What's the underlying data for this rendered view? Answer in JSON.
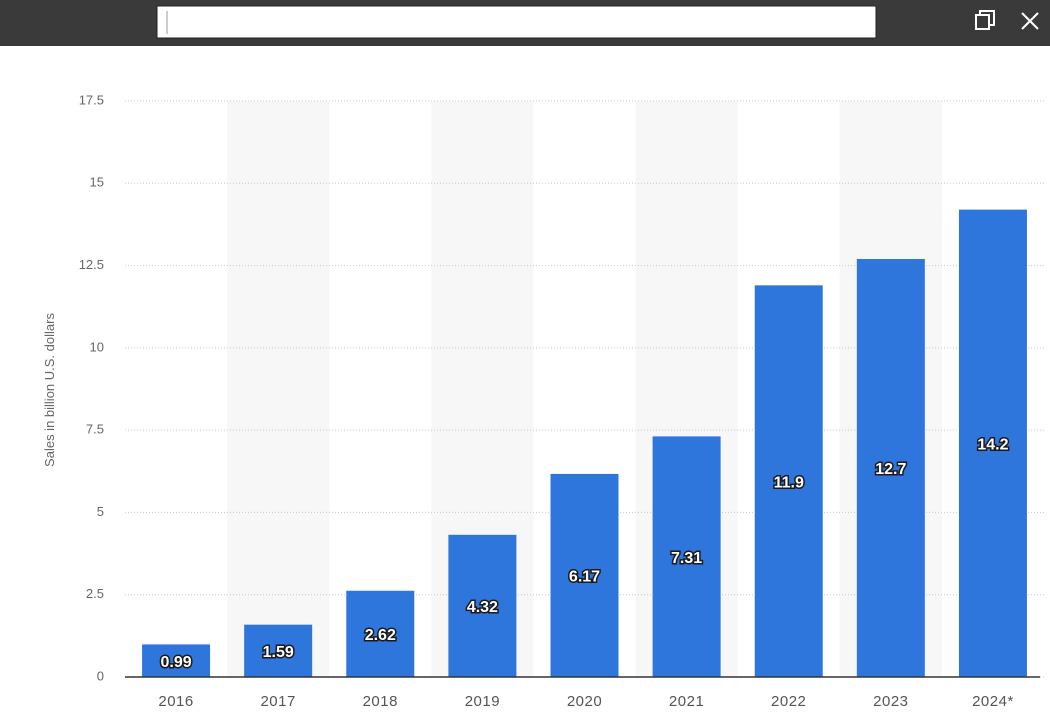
{
  "chart_data": {
    "type": "bar",
    "y_axis_label": "Sales in billion U.S. dollars",
    "categories": [
      "2016",
      "2017",
      "2018",
      "2019",
      "2020",
      "2021",
      "2022",
      "2023",
      "2024*"
    ],
    "values": [
      0.99,
      1.59,
      2.62,
      4.32,
      6.17,
      7.31,
      11.9,
      12.7,
      14.2
    ],
    "color": "#2f76dc",
    "ylim": [
      0,
      17.5
    ],
    "yticks": [
      0,
      2.5,
      5,
      7.5,
      10,
      12.5,
      15,
      17.5
    ],
    "grid": true
  }
}
